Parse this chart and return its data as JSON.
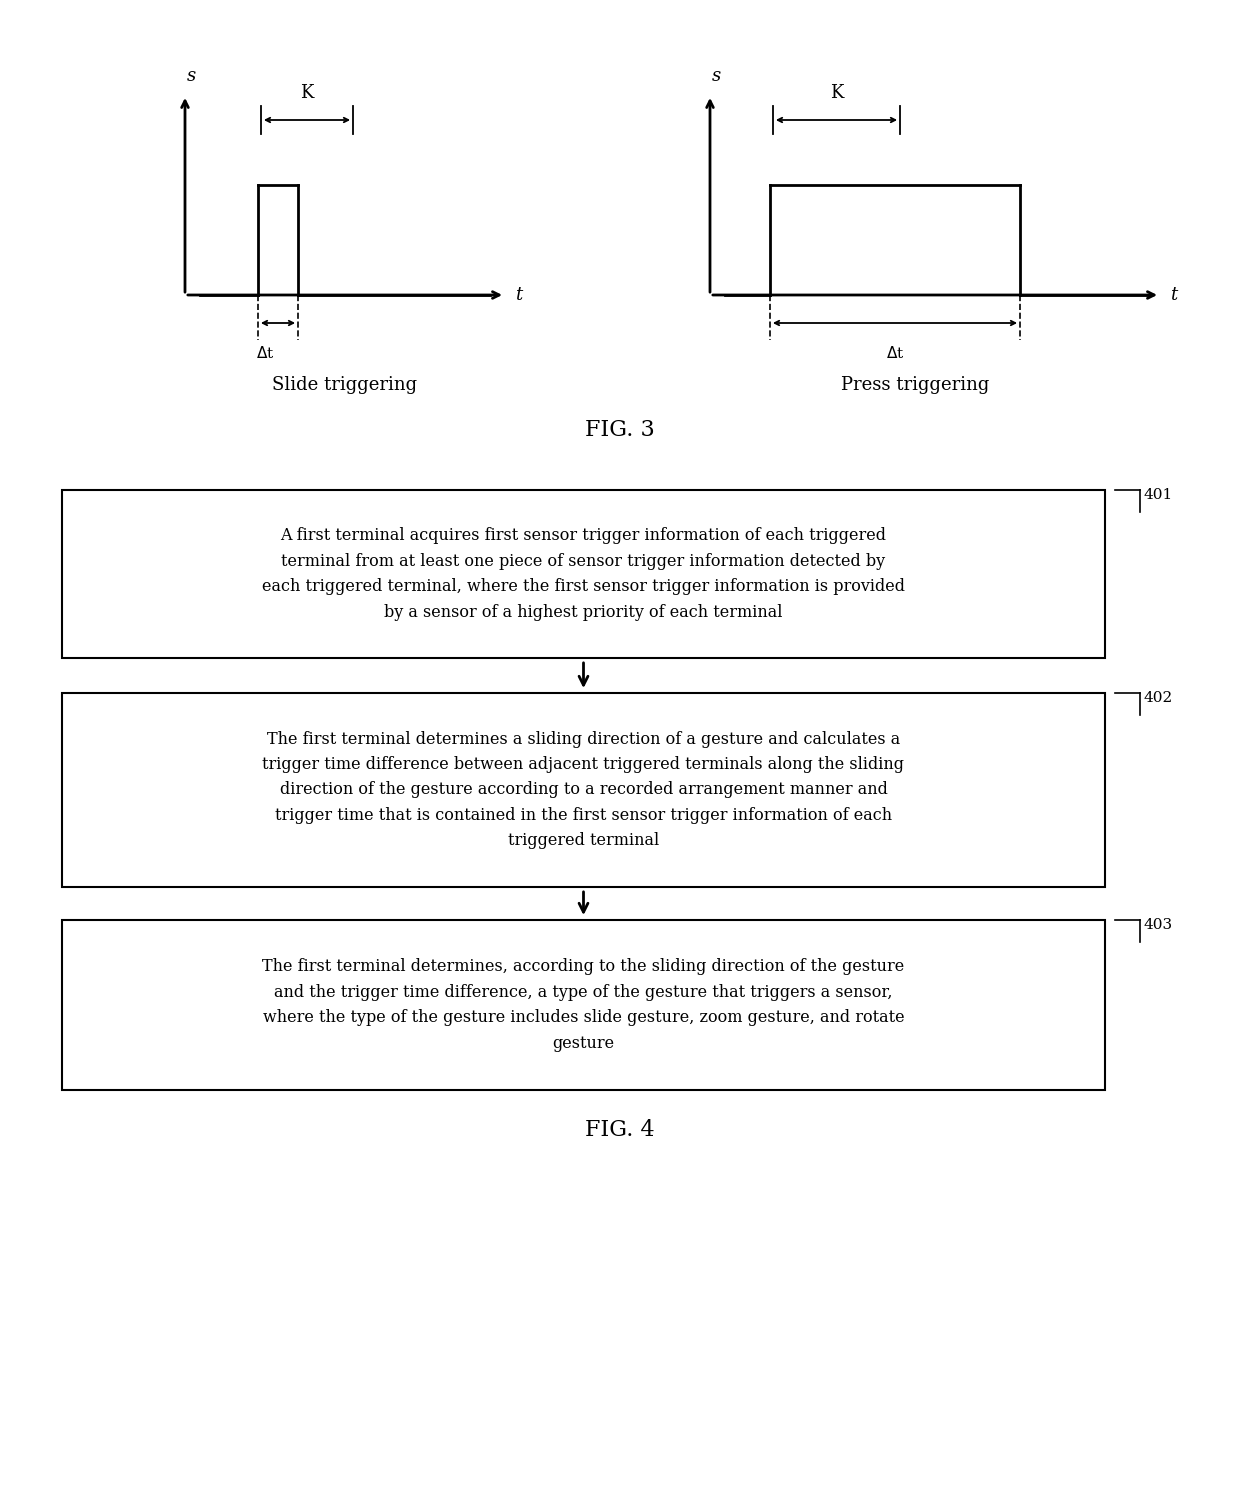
{
  "background_color": "#ffffff",
  "fig_width": 12.4,
  "fig_height": 14.91,
  "fig3_label": "FIG. 3",
  "fig4_label": "FIG. 4",
  "slide_label": "Slide triggering",
  "press_label": "Press triggering",
  "box401_text": "A first terminal acquires first sensor trigger information of each triggered\nterminal from at least one piece of sensor trigger information detected by\neach triggered terminal, where the first sensor trigger information is provided\nby a sensor of a highest priority of each terminal",
  "box402_text": "The first terminal determines a sliding direction of a gesture and calculates a\ntrigger time difference between adjacent triggered terminals along the sliding\ndirection of the gesture according to a recorded arrangement manner and\ntrigger time that is contained in the first sensor trigger information of each\ntriggered terminal",
  "box403_text": "The first terminal determines, according to the sliding direction of the gesture\nand the trigger time difference, a type of the gesture that triggers a sensor,\nwhere the type of the gesture includes slide gesture, zoom gesture, and rotate\ngesture",
  "label401": "401",
  "label402": "402",
  "label403": "403",
  "line_color": "#000000",
  "text_color": "#000000",
  "font_size_axis_label": 13,
  "font_size_box": 11.5,
  "font_size_fig": 16,
  "font_size_caption": 13,
  "font_size_step_label": 11
}
